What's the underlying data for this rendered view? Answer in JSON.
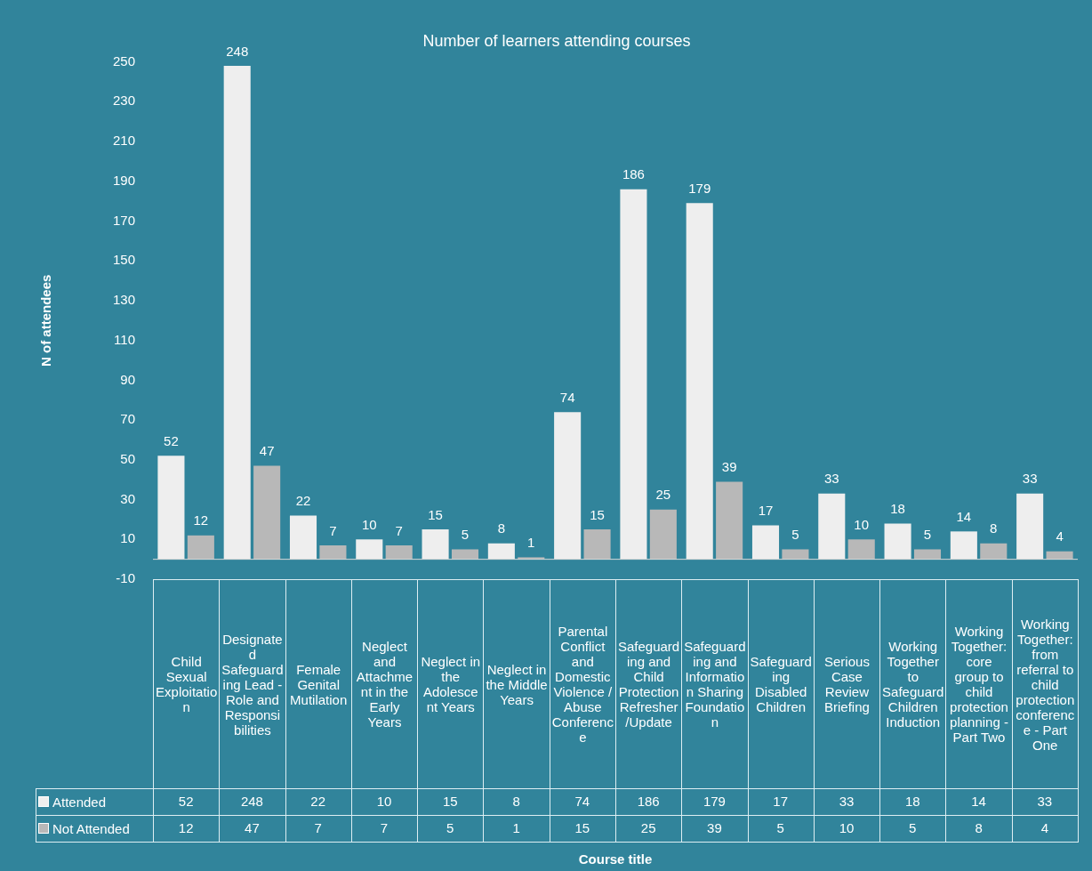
{
  "chart_data": {
    "type": "bar",
    "title": "Number of learners attending courses",
    "ylabel": "N of attendees",
    "categories": [
      "Child Sexual Exploitation",
      "Designated Safeguarding Lead - Role and Responsibilities",
      "Female Genital Mutilation",
      "Neglect and Attachment in the Early Years",
      "Neglect in the Adolescent Years",
      "Neglect in the Middle Years",
      "Parental Conflict and Domestic Violence / Abuse Conference",
      "Safeguarding and Child Protection Refresher/Update",
      "Safeguarding and Information Sharing Foundation",
      "Safeguarding Disabled Children",
      "Serious Case Review Briefing",
      "Working Together to Safeguard Children Induction",
      "Working Together: core group to child protection planning - Part Two",
      "Working Together: from referral to child protection conference - Part One"
    ],
    "series": [
      {
        "name": "Attended",
        "color": "#eeeeee",
        "values": [
          52,
          248,
          22,
          10,
          15,
          8,
          74,
          186,
          179,
          17,
          33,
          18,
          14,
          33
        ]
      },
      {
        "name": "Not Attended",
        "color": "#b8b8b8",
        "values": [
          12,
          47,
          7,
          7,
          5,
          1,
          15,
          25,
          39,
          5,
          10,
          5,
          8,
          4
        ]
      }
    ],
    "annotations": [
      "52",
      "248",
      "22",
      "10",
      "15",
      "8",
      "74",
      "186",
      "179",
      "17",
      "33",
      "18",
      "14",
      "33",
      "12",
      "47",
      "7",
      "7",
      "5",
      "1",
      "15",
      "25",
      "39",
      "5",
      "10",
      "5",
      "8",
      "4",
      "Course title"
    ],
    "ylim": [
      -10,
      250
    ],
    "yticks": [
      -10,
      10,
      30,
      50,
      70,
      90,
      110,
      130,
      150,
      170,
      190,
      210,
      230,
      250
    ],
    "grid": false,
    "legend": "bottom left",
    "data_labels": true
  }
}
